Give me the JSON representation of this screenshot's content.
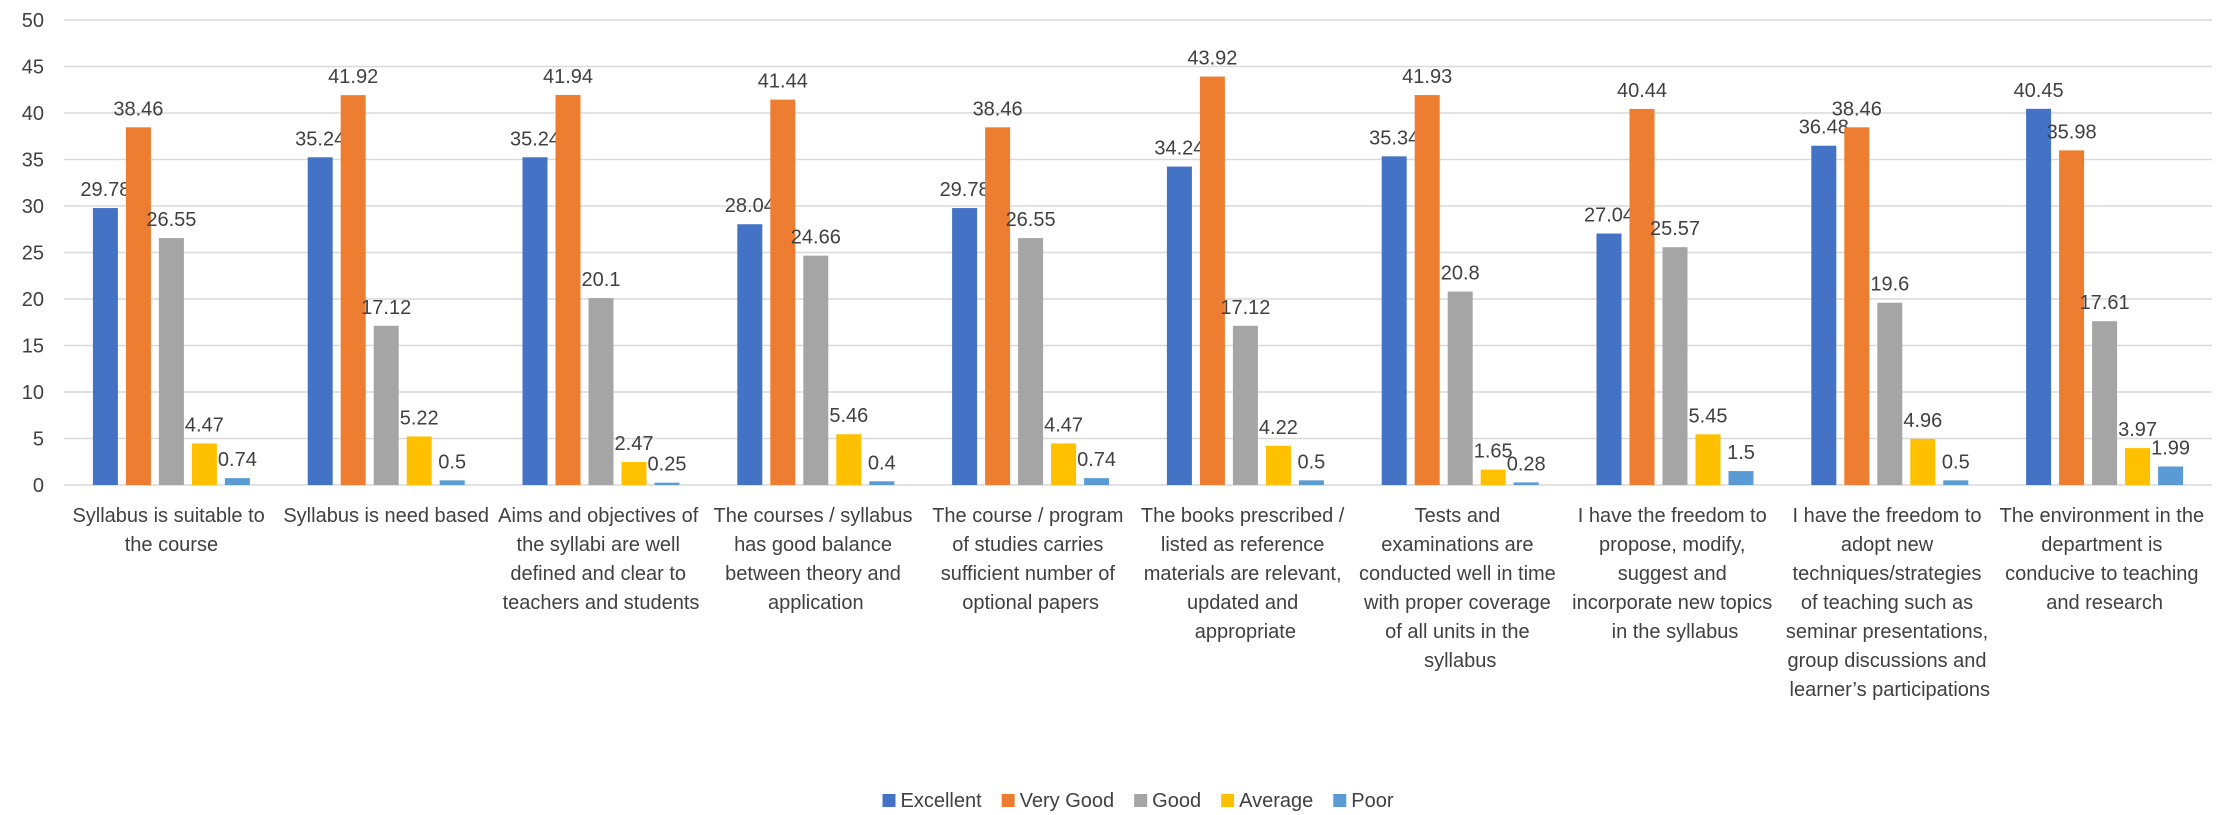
{
  "chart_data": {
    "type": "bar",
    "categories": [
      "Syllabus is suitable to the course",
      "Syllabus is need based",
      "Aims and objectives of the syllabi are well defined and clear to teachers and students",
      "The courses / syllabus has good balance between theory and application",
      "The course / program of studies carries sufficient number of optional papers",
      "The books prescribed / listed as reference materials are relevant, updated and appropriate",
      "Tests and examinations are conducted well in time with proper coverage of all units in the syllabus",
      "I have the freedom to propose, modify, suggest and incorporate new topics in the syllabus",
      "I have the freedom to adopt new techniques/strategies of teaching such as seminar presentations, group discussions and learner’s participations",
      "The environment in the department is conducive to teaching and research"
    ],
    "series": [
      {
        "name": "Excellent",
        "color": "#4472c4",
        "values": [
          29.78,
          35.24,
          35.24,
          28.04,
          29.78,
          34.24,
          35.34,
          27.04,
          36.48,
          40.45
        ]
      },
      {
        "name": "Very Good",
        "color": "#ed7d31",
        "values": [
          38.46,
          41.92,
          41.94,
          41.44,
          38.46,
          43.92,
          41.93,
          40.44,
          38.46,
          35.98
        ]
      },
      {
        "name": "Good",
        "color": "#a5a5a5",
        "values": [
          26.55,
          17.12,
          20.1,
          24.66,
          26.55,
          17.12,
          20.8,
          25.57,
          19.6,
          17.61
        ]
      },
      {
        "name": "Average",
        "color": "#ffc000",
        "values": [
          4.47,
          5.22,
          2.47,
          5.46,
          4.47,
          4.22,
          1.65,
          5.45,
          4.96,
          3.97
        ]
      },
      {
        "name": "Poor",
        "color": "#5b9bd5",
        "values": [
          0.74,
          0.5,
          0.25,
          0.4,
          0.74,
          0.5,
          0.28,
          1.5,
          0.5,
          1.99
        ]
      }
    ],
    "ylim": [
      0,
      50
    ],
    "yticks": [
      0,
      5,
      10,
      15,
      20,
      25,
      30,
      35,
      40,
      45,
      50
    ],
    "grid": true,
    "legend": "bottom"
  }
}
